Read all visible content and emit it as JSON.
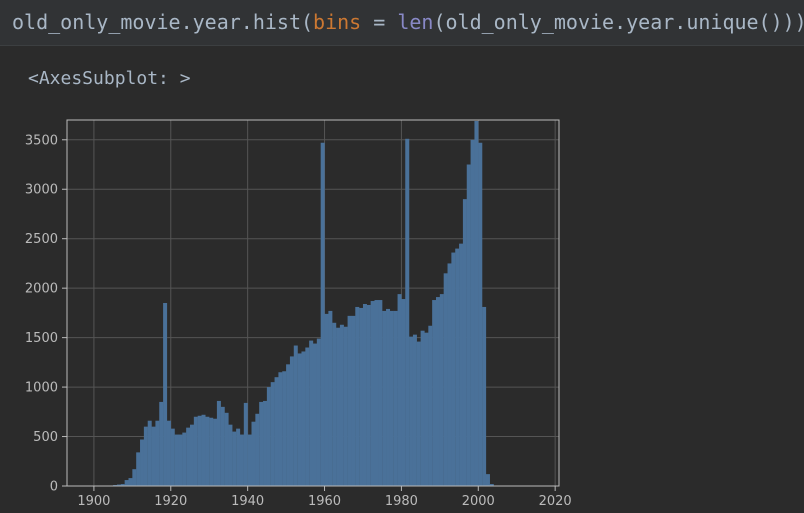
{
  "code_cell": {
    "segments": {
      "s1": "old_only_movie.year.hist(",
      "s2": "bins",
      "s3": " = ",
      "s4": "len",
      "s5": "(old_only_movie.year.unique()))"
    }
  },
  "output": {
    "text": "<AxesSubplot: >"
  },
  "colors": {
    "background": "#2b2b2b",
    "bar": "#4a7199",
    "grid": "#555555",
    "axes": "#bbbbbb",
    "tick_text": "#bbbbbb",
    "code_param": "#cc7832",
    "code_builtin": "#8888c6",
    "code_text": "#a9b7c6"
  },
  "chart_data": {
    "type": "bar",
    "title": "",
    "xlabel": "",
    "ylabel": "",
    "grid": true,
    "xlim": [
      1893,
      2021
    ],
    "ylim": [
      0,
      3700
    ],
    "xticks": [
      1900,
      1920,
      1940,
      1960,
      1980,
      2000,
      2020
    ],
    "yticks": [
      0,
      500,
      1000,
      1500,
      2000,
      2500,
      3000,
      3500
    ],
    "bin_start": 1905,
    "bin_width": 1,
    "values": [
      10,
      15,
      20,
      60,
      80,
      170,
      340,
      470,
      600,
      660,
      600,
      660,
      850,
      1850,
      660,
      580,
      520,
      520,
      540,
      590,
      620,
      700,
      710,
      720,
      700,
      690,
      680,
      860,
      800,
      740,
      620,
      550,
      580,
      520,
      840,
      520,
      650,
      730,
      850,
      860,
      1000,
      1050,
      1100,
      1150,
      1160,
      1230,
      1310,
      1420,
      1340,
      1360,
      1400,
      1470,
      1440,
      1490,
      3470,
      1740,
      1770,
      1650,
      1600,
      1630,
      1610,
      1720,
      1720,
      1810,
      1800,
      1840,
      1830,
      1870,
      1880,
      1880,
      1770,
      1790,
      1770,
      1770,
      1940,
      1890,
      3510,
      1510,
      1530,
      1460,
      1570,
      1550,
      1620,
      1880,
      1910,
      1940,
      2150,
      2250,
      2360,
      2400,
      2450,
      2900,
      3250,
      3500,
      3690,
      3470,
      1810,
      120,
      20
    ]
  }
}
